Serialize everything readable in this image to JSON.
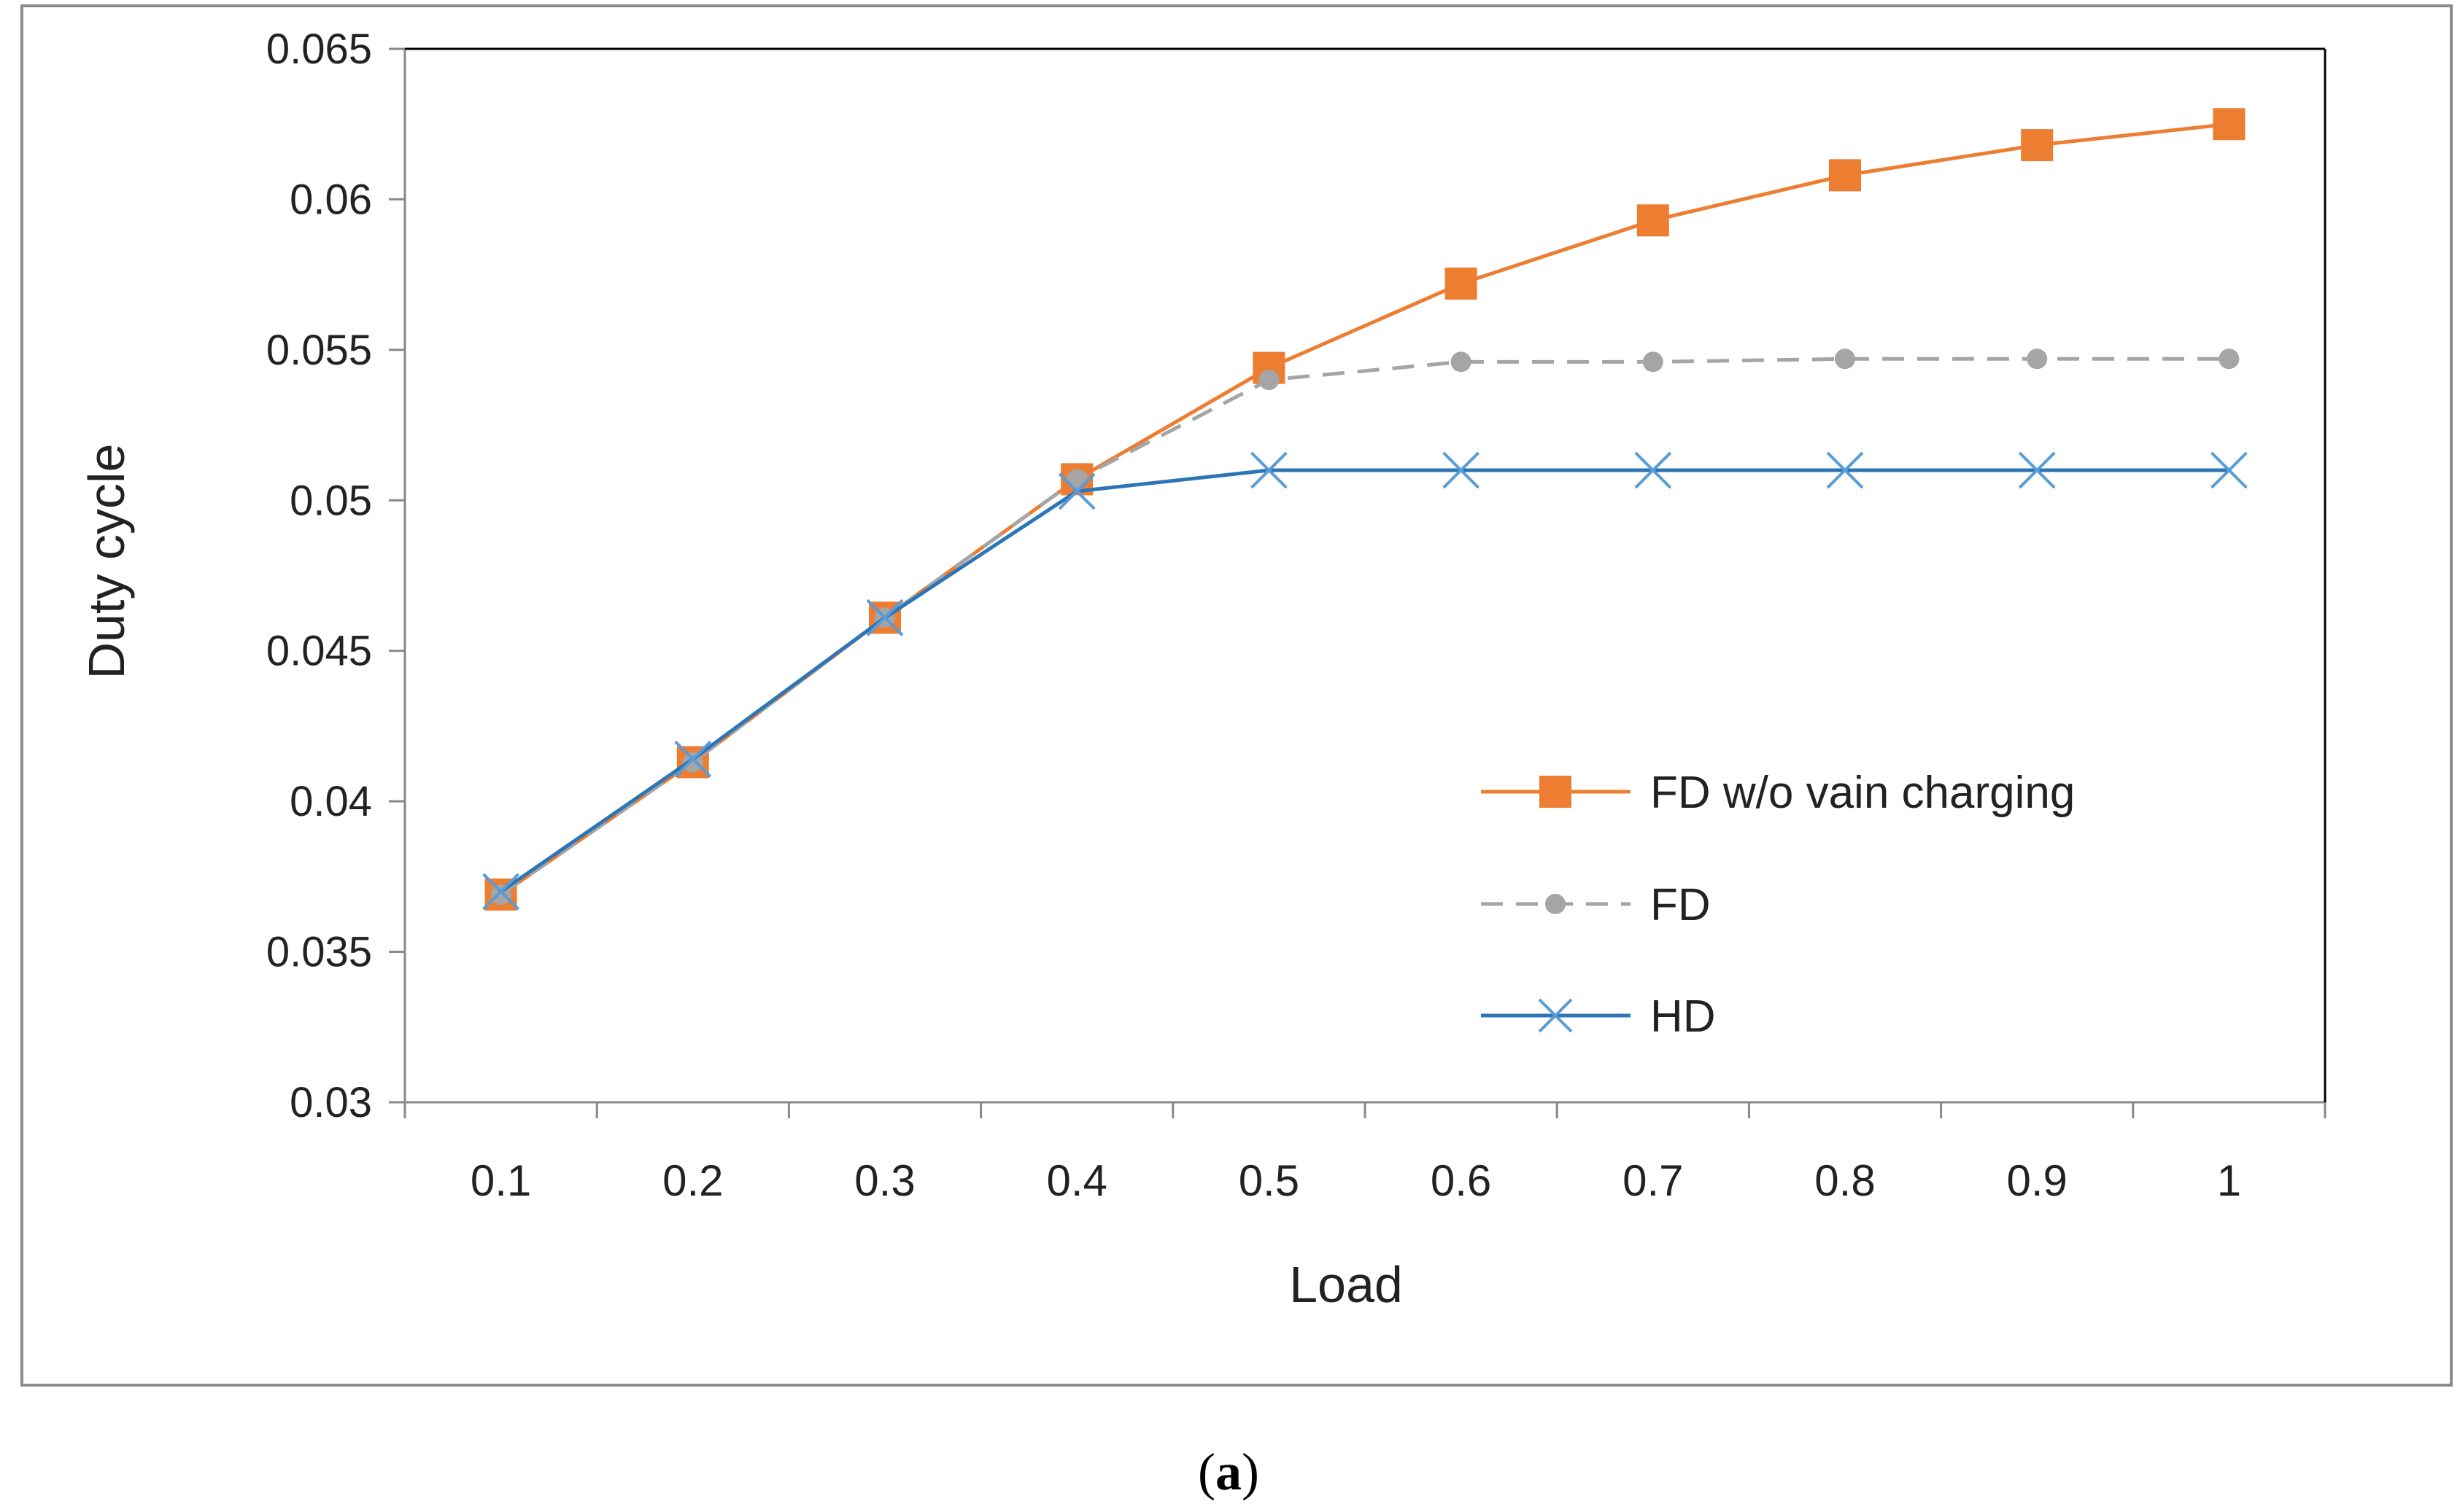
{
  "chart_data": {
    "type": "line",
    "title": "",
    "xlabel": "Load",
    "ylabel": "Duty cycle",
    "categories": [
      "0.1",
      "0.2",
      "0.3",
      "0.4",
      "0.5",
      "0.6",
      "0.7",
      "0.8",
      "0.9",
      "1"
    ],
    "ylim": [
      0.03,
      0.065
    ],
    "yticks": [
      0.03,
      0.035,
      0.04,
      0.045,
      0.05,
      0.055,
      0.06,
      0.065
    ],
    "ytick_labels": [
      "0.03",
      "0.035",
      "0.04",
      "0.045",
      "0.05",
      "0.055",
      "0.06",
      "0.065"
    ],
    "grid": false,
    "legend_position": "center-right",
    "series": [
      {
        "name": "FD w/o vain charging",
        "color": "#ED7D31",
        "marker": "square",
        "line_style": "solid",
        "values": [
          0.0369,
          0.0413,
          0.0461,
          0.0507,
          0.0544,
          0.0572,
          0.0593,
          0.0608,
          0.0618,
          0.0625
        ]
      },
      {
        "name": "FD",
        "color": "#A5A5A5",
        "marker": "circle",
        "line_style": "dashed",
        "values": [
          0.0369,
          0.0413,
          0.0461,
          0.0507,
          0.054,
          0.0546,
          0.0546,
          0.0547,
          0.0547,
          0.0547
        ]
      },
      {
        "name": "HD",
        "color": "#5B9BD5",
        "line_color": "#2E75B6",
        "marker": "x",
        "line_style": "solid",
        "values": [
          0.037,
          0.0414,
          0.0461,
          0.0503,
          0.051,
          0.051,
          0.051,
          0.051,
          0.051,
          0.051
        ]
      }
    ]
  },
  "caption": {
    "open": "(",
    "letter": "a",
    "close": ")"
  },
  "colors": {
    "axis": "#888888",
    "frame": "#8c8c8c",
    "text": "#222222"
  }
}
